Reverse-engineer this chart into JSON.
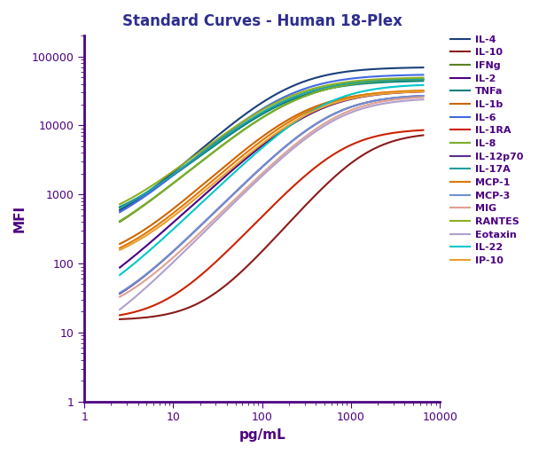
{
  "title": "Standard Curves - Human 18-Plex",
  "xlabel": "pg/mL",
  "ylabel": "MFI",
  "xlim": [
    2,
    7000
  ],
  "ylim": [
    1,
    200000
  ],
  "series": [
    {
      "name": "IL-4",
      "color": "#1a3f7a",
      "bottom": 230,
      "top": 70000,
      "ec50": 200,
      "hill": 1.2
    },
    {
      "name": "IL-10",
      "color": "#8b1a1a",
      "bottom": 15,
      "top": 8000,
      "ec50": 1500,
      "hill": 1.5
    },
    {
      "name": "IFNg",
      "color": "#5a8020",
      "bottom": 100,
      "top": 48000,
      "ec50": 250,
      "hill": 1.1
    },
    {
      "name": "IL-2",
      "color": "#4b0082",
      "bottom": 15,
      "top": 32000,
      "ec50": 400,
      "hill": 1.2
    },
    {
      "name": "TNFa",
      "color": "#008080",
      "bottom": 300,
      "top": 45000,
      "ec50": 200,
      "hill": 1.1
    },
    {
      "name": "IL-1b",
      "color": "#cc6600",
      "bottom": 90,
      "top": 32000,
      "ec50": 300,
      "hill": 1.2
    },
    {
      "name": "IL-6",
      "color": "#4169e1",
      "bottom": 200,
      "top": 55000,
      "ec50": 200,
      "hill": 1.15
    },
    {
      "name": "IL-1RA",
      "color": "#cc2200",
      "bottom": 15,
      "top": 9000,
      "ec50": 800,
      "hill": 1.4
    },
    {
      "name": "IL-8",
      "color": "#7ab029",
      "bottom": 110,
      "top": 48000,
      "ec50": 250,
      "hill": 1.1
    },
    {
      "name": "IL-12p70",
      "color": "#5b2d8e",
      "bottom": 14,
      "top": 28000,
      "ec50": 600,
      "hill": 1.3
    },
    {
      "name": "IL-17A",
      "color": "#20a0a0",
      "bottom": 250,
      "top": 48000,
      "ec50": 200,
      "hill": 1.1
    },
    {
      "name": "MCP-1",
      "color": "#e07800",
      "bottom": 80,
      "top": 33000,
      "ec50": 350,
      "hill": 1.2
    },
    {
      "name": "MCP-3",
      "color": "#7090d0",
      "bottom": 15,
      "top": 28000,
      "ec50": 600,
      "hill": 1.3
    },
    {
      "name": "MIG",
      "color": "#e0a090",
      "bottom": 15,
      "top": 27000,
      "ec50": 700,
      "hill": 1.3
    },
    {
      "name": "RANTES",
      "color": "#8db020",
      "bottom": 300,
      "top": 50000,
      "ec50": 190,
      "hill": 1.1
    },
    {
      "name": "Eotaxin",
      "color": "#b0a0d0",
      "bottom": 5,
      "top": 25000,
      "ec50": 700,
      "hill": 1.3
    },
    {
      "name": "IL-22",
      "color": "#00c8c8",
      "bottom": 15,
      "top": 40000,
      "ec50": 500,
      "hill": 1.25
    },
    {
      "name": "IP-10",
      "color": "#e8a030",
      "bottom": 80,
      "top": 32000,
      "ec50": 380,
      "hill": 1.2
    }
  ],
  "title_color": "#2d2d8e",
  "axis_color": "#4b0082",
  "label_color": "#4b0082",
  "tick_color": "#4b0082",
  "legend_text_color": "#4b0082",
  "background_color": "#ffffff"
}
